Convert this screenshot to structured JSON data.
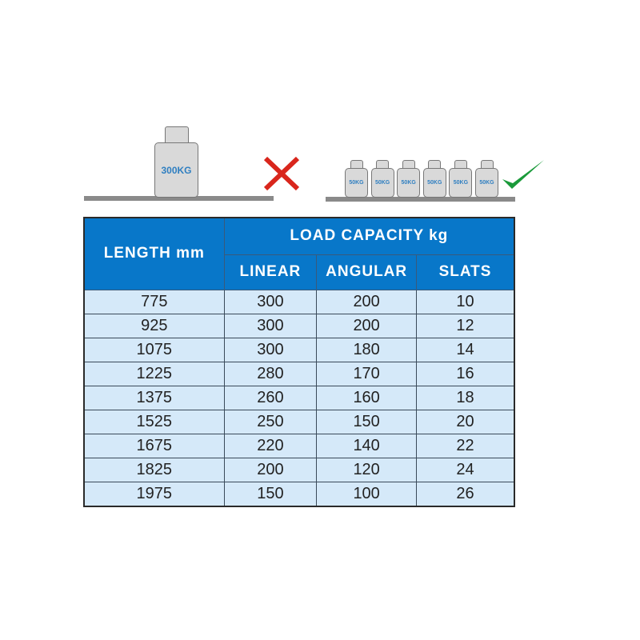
{
  "illustration": {
    "heavy_weight_label": "300KG",
    "light_weight_labels": [
      "50KG",
      "50KG",
      "50KG",
      "50KG",
      "50KG",
      "50KG"
    ],
    "wrong_icon": "cross-icon",
    "right_icon": "checkmark-icon",
    "colors": {
      "wrong": "#d9261c",
      "right": "#1a9a3a",
      "weight_text": "#2f7fc1"
    }
  },
  "table": {
    "header_length": "LENGTH mm",
    "header_group": "LOAD CAPACITY kg",
    "subheaders": [
      "LINEAR",
      "ANGULAR",
      "SLATS"
    ],
    "rows": [
      [
        "775",
        "300",
        "200",
        "10"
      ],
      [
        "925",
        "300",
        "200",
        "12"
      ],
      [
        "1075",
        "300",
        "180",
        "14"
      ],
      [
        "1225",
        "280",
        "170",
        "16"
      ],
      [
        "1375",
        "260",
        "160",
        "18"
      ],
      [
        "1525",
        "250",
        "150",
        "20"
      ],
      [
        "1675",
        "220",
        "140",
        "22"
      ],
      [
        "1825",
        "200",
        "120",
        "24"
      ],
      [
        "1975",
        "150",
        "100",
        "26"
      ]
    ],
    "colors": {
      "header_bg": "#0877c9",
      "row_bg": "#d5e9f9"
    }
  }
}
